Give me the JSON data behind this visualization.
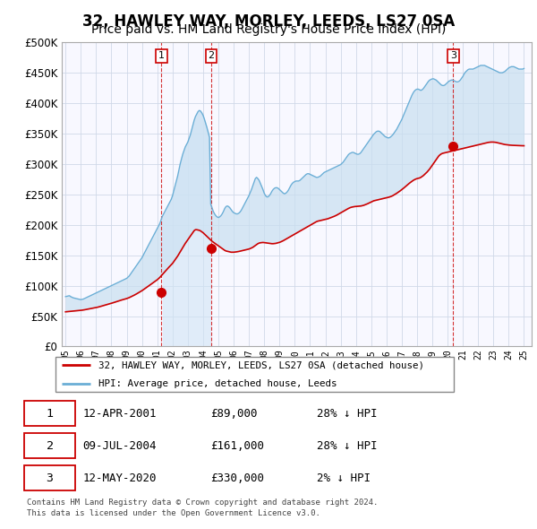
{
  "title": "32, HAWLEY WAY, MORLEY, LEEDS, LS27 0SA",
  "subtitle": "Price paid vs. HM Land Registry's House Price Index (HPI)",
  "ylim": [
    0,
    500000
  ],
  "yticks": [
    0,
    50000,
    100000,
    150000,
    200000,
    250000,
    300000,
    350000,
    400000,
    450000,
    500000
  ],
  "background_color": "#ffffff",
  "grid_color": "#d0d8e8",
  "hpi_line_color": "#6aaed6",
  "hpi_fill_color": "#c8dff0",
  "price_line_color": "#cc0000",
  "sale_marker_color": "#cc0000",
  "shade_fill_color": "#d0e4f5",
  "title_fontsize": 12,
  "subtitle_fontsize": 10,
  "sales": [
    {
      "label": "1",
      "x": 2001.28,
      "price": 89000,
      "date": "12-APR-2001",
      "note": "28% ↓ HPI"
    },
    {
      "label": "2",
      "x": 2004.53,
      "price": 161000,
      "date": "09-JUL-2004",
      "note": "28% ↓ HPI"
    },
    {
      "label": "3",
      "x": 2020.37,
      "price": 330000,
      "date": "12-MAY-2020",
      "note": "2% ↓ HPI"
    }
  ],
  "legend_line1": "32, HAWLEY WAY, MORLEY, LEEDS, LS27 0SA (detached house)",
  "legend_line2": "HPI: Average price, detached house, Leeds",
  "footer1": "Contains HM Land Registry data © Crown copyright and database right 2024.",
  "footer2": "This data is licensed under the Open Government Licence v3.0.",
  "hpi_x": [
    1995.0,
    1995.083,
    1995.167,
    1995.25,
    1995.333,
    1995.417,
    1995.5,
    1995.583,
    1995.667,
    1995.75,
    1995.833,
    1995.917,
    1996.0,
    1996.083,
    1996.167,
    1996.25,
    1996.333,
    1996.417,
    1996.5,
    1996.583,
    1996.667,
    1996.75,
    1996.833,
    1996.917,
    1997.0,
    1997.083,
    1997.167,
    1997.25,
    1997.333,
    1997.417,
    1997.5,
    1997.583,
    1997.667,
    1997.75,
    1997.833,
    1997.917,
    1998.0,
    1998.083,
    1998.167,
    1998.25,
    1998.333,
    1998.417,
    1998.5,
    1998.583,
    1998.667,
    1998.75,
    1998.833,
    1998.917,
    1999.0,
    1999.083,
    1999.167,
    1999.25,
    1999.333,
    1999.417,
    1999.5,
    1999.583,
    1999.667,
    1999.75,
    1999.833,
    1999.917,
    2000.0,
    2000.083,
    2000.167,
    2000.25,
    2000.333,
    2000.417,
    2000.5,
    2000.583,
    2000.667,
    2000.75,
    2000.833,
    2000.917,
    2001.0,
    2001.083,
    2001.167,
    2001.25,
    2001.333,
    2001.417,
    2001.5,
    2001.583,
    2001.667,
    2001.75,
    2001.833,
    2001.917,
    2002.0,
    2002.083,
    2002.167,
    2002.25,
    2002.333,
    2002.417,
    2002.5,
    2002.583,
    2002.667,
    2002.75,
    2002.833,
    2002.917,
    2003.0,
    2003.083,
    2003.167,
    2003.25,
    2003.333,
    2003.417,
    2003.5,
    2003.583,
    2003.667,
    2003.75,
    2003.833,
    2003.917,
    2004.0,
    2004.083,
    2004.167,
    2004.25,
    2004.333,
    2004.417,
    2004.5,
    2004.583,
    2004.667,
    2004.75,
    2004.833,
    2004.917,
    2005.0,
    2005.083,
    2005.167,
    2005.25,
    2005.333,
    2005.417,
    2005.5,
    2005.583,
    2005.667,
    2005.75,
    2005.833,
    2005.917,
    2006.0,
    2006.083,
    2006.167,
    2006.25,
    2006.333,
    2006.417,
    2006.5,
    2006.583,
    2006.667,
    2006.75,
    2006.833,
    2006.917,
    2007.0,
    2007.083,
    2007.167,
    2007.25,
    2007.333,
    2007.417,
    2007.5,
    2007.583,
    2007.667,
    2007.75,
    2007.833,
    2007.917,
    2008.0,
    2008.083,
    2008.167,
    2008.25,
    2008.333,
    2008.417,
    2008.5,
    2008.583,
    2008.667,
    2008.75,
    2008.833,
    2008.917,
    2009.0,
    2009.083,
    2009.167,
    2009.25,
    2009.333,
    2009.417,
    2009.5,
    2009.583,
    2009.667,
    2009.75,
    2009.833,
    2009.917,
    2010.0,
    2010.083,
    2010.167,
    2010.25,
    2010.333,
    2010.417,
    2010.5,
    2010.583,
    2010.667,
    2010.75,
    2010.833,
    2010.917,
    2011.0,
    2011.083,
    2011.167,
    2011.25,
    2011.333,
    2011.417,
    2011.5,
    2011.583,
    2011.667,
    2011.75,
    2011.833,
    2011.917,
    2012.0,
    2012.083,
    2012.167,
    2012.25,
    2012.333,
    2012.417,
    2012.5,
    2012.583,
    2012.667,
    2012.75,
    2012.833,
    2012.917,
    2013.0,
    2013.083,
    2013.167,
    2013.25,
    2013.333,
    2013.417,
    2013.5,
    2013.583,
    2013.667,
    2013.75,
    2013.833,
    2013.917,
    2014.0,
    2014.083,
    2014.167,
    2014.25,
    2014.333,
    2014.417,
    2014.5,
    2014.583,
    2014.667,
    2014.75,
    2014.833,
    2014.917,
    2015.0,
    2015.083,
    2015.167,
    2015.25,
    2015.333,
    2015.417,
    2015.5,
    2015.583,
    2015.667,
    2015.75,
    2015.833,
    2015.917,
    2016.0,
    2016.083,
    2016.167,
    2016.25,
    2016.333,
    2016.417,
    2016.5,
    2016.583,
    2016.667,
    2016.75,
    2016.833,
    2016.917,
    2017.0,
    2017.083,
    2017.167,
    2017.25,
    2017.333,
    2017.417,
    2017.5,
    2017.583,
    2017.667,
    2017.75,
    2017.833,
    2017.917,
    2018.0,
    2018.083,
    2018.167,
    2018.25,
    2018.333,
    2018.417,
    2018.5,
    2018.583,
    2018.667,
    2018.75,
    2018.833,
    2018.917,
    2019.0,
    2019.083,
    2019.167,
    2019.25,
    2019.333,
    2019.417,
    2019.5,
    2019.583,
    2019.667,
    2019.75,
    2019.833,
    2019.917,
    2020.0,
    2020.083,
    2020.167,
    2020.25,
    2020.333,
    2020.417,
    2020.5,
    2020.583,
    2020.667,
    2020.75,
    2020.833,
    2020.917,
    2021.0,
    2021.083,
    2021.167,
    2021.25,
    2021.333,
    2021.417,
    2021.5,
    2021.583,
    2021.667,
    2021.75,
    2021.833,
    2021.917,
    2022.0,
    2022.083,
    2022.167,
    2022.25,
    2022.333,
    2022.417,
    2022.5,
    2022.583,
    2022.667,
    2022.75,
    2022.833,
    2022.917,
    2023.0,
    2023.083,
    2023.167,
    2023.25,
    2023.333,
    2023.417,
    2023.5,
    2023.583,
    2023.667,
    2023.75,
    2023.833,
    2023.917,
    2024.0,
    2024.083,
    2024.167,
    2024.25,
    2024.333,
    2024.417,
    2024.5,
    2024.583,
    2024.667,
    2024.75,
    2024.833,
    2024.917,
    2025.0
  ],
  "hpi_y": [
    82000,
    82500,
    83000,
    83500,
    82000,
    81000,
    80000,
    79500,
    79000,
    78500,
    78000,
    77500,
    77000,
    77500,
    78000,
    79000,
    80000,
    81000,
    82000,
    83000,
    84000,
    85000,
    86000,
    87000,
    88000,
    89000,
    90000,
    91000,
    92000,
    93000,
    94000,
    95000,
    96000,
    97000,
    98000,
    99000,
    100000,
    101000,
    102000,
    103000,
    104000,
    105000,
    106000,
    107000,
    108000,
    109000,
    110000,
    111000,
    112000,
    114000,
    116000,
    119000,
    122000,
    125000,
    128000,
    131000,
    134000,
    137000,
    140000,
    143000,
    146000,
    150000,
    154000,
    158000,
    162000,
    166000,
    170000,
    174000,
    178000,
    182000,
    186000,
    190000,
    194000,
    198000,
    202000,
    208000,
    214000,
    218000,
    222000,
    226000,
    230000,
    234000,
    238000,
    242000,
    248000,
    256000,
    264000,
    272000,
    280000,
    290000,
    300000,
    308000,
    316000,
    322000,
    328000,
    332000,
    336000,
    342000,
    348000,
    356000,
    364000,
    372000,
    378000,
    382000,
    386000,
    388000,
    387000,
    384000,
    380000,
    374000,
    367000,
    360000,
    352000,
    344000,
    234000,
    228000,
    222000,
    218000,
    215000,
    213000,
    212000,
    213000,
    215000,
    218000,
    222000,
    227000,
    230000,
    231000,
    230000,
    228000,
    225000,
    222000,
    220000,
    219000,
    218000,
    218000,
    219000,
    221000,
    224000,
    228000,
    232000,
    236000,
    240000,
    244000,
    248000,
    253000,
    258000,
    264000,
    270000,
    276000,
    278000,
    276000,
    273000,
    268000,
    263000,
    258000,
    252000,
    248000,
    246000,
    246000,
    248000,
    251000,
    255000,
    258000,
    260000,
    261000,
    261000,
    260000,
    258000,
    256000,
    254000,
    252000,
    251000,
    252000,
    254000,
    257000,
    261000,
    265000,
    268000,
    270000,
    271000,
    272000,
    272000,
    272000,
    273000,
    275000,
    277000,
    279000,
    281000,
    283000,
    284000,
    284000,
    283000,
    282000,
    281000,
    280000,
    279000,
    278000,
    278000,
    279000,
    280000,
    282000,
    284000,
    286000,
    287000,
    288000,
    289000,
    290000,
    291000,
    292000,
    293000,
    294000,
    295000,
    296000,
    297000,
    298000,
    299000,
    301000,
    303000,
    306000,
    309000,
    312000,
    315000,
    317000,
    318000,
    319000,
    319000,
    318000,
    317000,
    316000,
    316000,
    317000,
    319000,
    322000,
    325000,
    328000,
    331000,
    334000,
    337000,
    340000,
    343000,
    346000,
    349000,
    351000,
    353000,
    354000,
    354000,
    353000,
    351000,
    349000,
    347000,
    345000,
    344000,
    343000,
    343000,
    344000,
    346000,
    348000,
    351000,
    354000,
    357000,
    361000,
    365000,
    369000,
    373000,
    378000,
    383000,
    388000,
    393000,
    398000,
    403000,
    408000,
    413000,
    417000,
    420000,
    422000,
    423000,
    423000,
    422000,
    421000,
    422000,
    424000,
    427000,
    430000,
    433000,
    436000,
    438000,
    439000,
    440000,
    440000,
    439000,
    438000,
    436000,
    434000,
    432000,
    430000,
    429000,
    429000,
    430000,
    432000,
    434000,
    436000,
    437000,
    438000,
    438000,
    437000,
    436000,
    435000,
    435000,
    436000,
    438000,
    441000,
    444000,
    448000,
    451000,
    453000,
    455000,
    456000,
    456000,
    456000,
    456000,
    457000,
    458000,
    459000,
    460000,
    461000,
    462000,
    462000,
    462000,
    462000,
    461000,
    460000,
    459000,
    458000,
    457000,
    456000,
    455000,
    454000,
    453000,
    452000,
    451000,
    450000,
    450000,
    450000,
    451000,
    452000,
    454000,
    456000,
    458000,
    459000,
    460000,
    460000,
    460000,
    459000,
    458000,
    457000,
    456000,
    456000,
    456000,
    456000,
    457000
  ],
  "price_y": [
    57000,
    57200,
    57400,
    57600,
    57800,
    58000,
    58200,
    58400,
    58600,
    58800,
    59000,
    59200,
    59400,
    59700,
    60000,
    60400,
    60800,
    61200,
    61600,
    62000,
    62400,
    62800,
    63200,
    63600,
    64000,
    64500,
    65000,
    65600,
    66200,
    66800,
    67400,
    68000,
    68600,
    69200,
    69800,
    70400,
    71000,
    71700,
    72400,
    73100,
    73800,
    74500,
    75200,
    75800,
    76400,
    77000,
    77600,
    78200,
    78800,
    79600,
    80400,
    81400,
    82400,
    83400,
    84500,
    85600,
    86800,
    88000,
    89200,
    90500,
    91800,
    93200,
    94700,
    96200,
    97700,
    99200,
    100700,
    102200,
    103700,
    105200,
    106700,
    108200,
    109700,
    111500,
    113500,
    115800,
    118200,
    120600,
    123000,
    125400,
    127800,
    130000,
    132200,
    134400,
    136600,
    139500,
    142500,
    145500,
    148500,
    152000,
    155500,
    159000,
    162500,
    166000,
    169500,
    172500,
    175500,
    178500,
    181500,
    184500,
    187500,
    190500,
    192000,
    192000,
    191500,
    191000,
    190000,
    188500,
    187000,
    185000,
    183000,
    181000,
    179000,
    177000,
    175000,
    173000,
    171500,
    170000,
    168500,
    167000,
    165500,
    164000,
    162500,
    161000,
    159500,
    158000,
    157000,
    156500,
    156000,
    155500,
    155000,
    155000,
    155000,
    155200,
    155500,
    155800,
    156200,
    156700,
    157200,
    157700,
    158200,
    158700,
    159200,
    159700,
    160200,
    161000,
    162000,
    163000,
    164500,
    166000,
    167500,
    169000,
    170000,
    170500,
    170800,
    171000,
    170800,
    170500,
    170200,
    169800,
    169500,
    169200,
    169000,
    169000,
    169200,
    169500,
    170000,
    170600,
    171200,
    172000,
    173000,
    174000,
    175200,
    176400,
    177600,
    178800,
    180000,
    181200,
    182400,
    183600,
    184800,
    186000,
    187200,
    188400,
    189600,
    190800,
    192000,
    193200,
    194400,
    195600,
    196800,
    198000,
    199200,
    200400,
    201600,
    202800,
    204000,
    205200,
    206000,
    206500,
    207000,
    207500,
    208000,
    208500,
    209000,
    209500,
    210000,
    210800,
    211600,
    212400,
    213200,
    214000,
    215000,
    216000,
    217200,
    218400,
    219600,
    220800,
    222000,
    223200,
    224400,
    225600,
    226800,
    227800,
    228600,
    229200,
    229600,
    230000,
    230200,
    230400,
    230600,
    230800,
    231000,
    231500,
    232000,
    232800,
    233600,
    234500,
    235500,
    236500,
    237500,
    238500,
    239500,
    240000,
    240500,
    241000,
    241500,
    242000,
    242500,
    243000,
    243500,
    244000,
    244500,
    245000,
    245500,
    246200,
    247000,
    248000,
    249200,
    250500,
    251800,
    253200,
    254700,
    256200,
    257800,
    259500,
    261200,
    263000,
    264800,
    266600,
    268400,
    270000,
    271500,
    273000,
    274200,
    275200,
    276000,
    276500,
    277000,
    278000,
    279500,
    281000,
    283000,
    285000,
    287000,
    289500,
    292000,
    295000,
    298000,
    301000,
    304000,
    307000,
    310000,
    313000,
    315000,
    316500,
    317500,
    318000,
    318500,
    319000,
    319500,
    320000,
    320500,
    321000,
    321500,
    322000,
    322500,
    323000,
    323500,
    324000,
    324500,
    325000,
    325500,
    326000,
    326500,
    327000,
    327500,
    328000,
    328500,
    329000,
    329500,
    330000,
    330500,
    331000,
    331500,
    332000,
    332500,
    333000,
    333500,
    334000,
    334500,
    335000,
    335500,
    335800,
    336000,
    336000,
    336000,
    335800,
    335500,
    335000,
    334500,
    334000,
    333500,
    333000,
    332500,
    332000,
    331800,
    331500,
    331200,
    331000,
    330800,
    330700,
    330600,
    330500,
    330400,
    330300,
    330200,
    330100,
    330000,
    330000,
    330000
  ]
}
